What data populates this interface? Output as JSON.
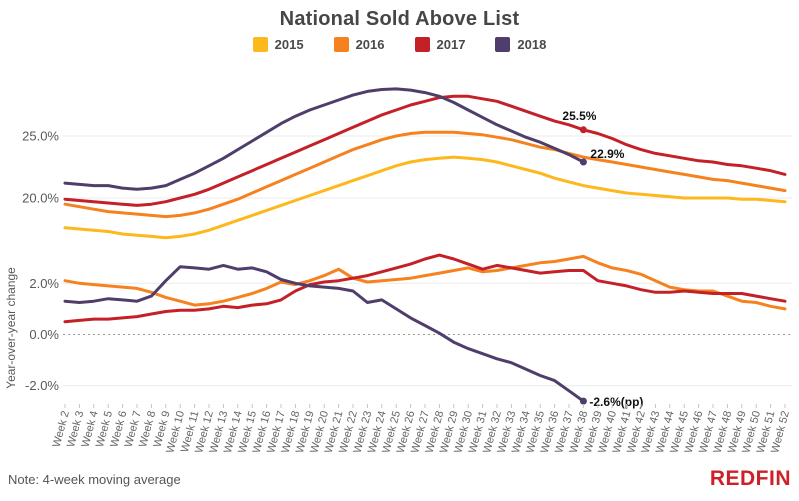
{
  "title": "National Sold Above List",
  "note": "Note: 4-week moving average",
  "brand": "REDFIN",
  "colors": {
    "2015": "#FDB81E",
    "2016": "#F6821F",
    "2017": "#C32127",
    "2018": "#4F3E6B",
    "grid": "#ebebeb",
    "zero_line": "#999999",
    "axis_text": "#595959",
    "x_tick_text": "#666666",
    "title_text": "#464646",
    "note_text": "#555555",
    "annotation_text": "#111111",
    "brand_red": "#CE2029"
  },
  "legend": {
    "items": [
      {
        "label": "2015"
      },
      {
        "label": "2016"
      },
      {
        "label": "2017"
      },
      {
        "label": "2018"
      }
    ]
  },
  "x_axis": {
    "start_week": 2,
    "labels": [
      "Week 2",
      "Week 3",
      "Week 4",
      "Week 5",
      "Week 6",
      "Week 7",
      "Week 8",
      "Week 9",
      "Week 10",
      "Week 11",
      "Week 12",
      "Week 13",
      "Week 14",
      "Week 15",
      "Week 16",
      "Week 17",
      "Week 18",
      "Week 19",
      "Week 20",
      "Week 21",
      "Week 22",
      "Week 23",
      "Week 24",
      "Week 25",
      "Week 26",
      "Week 27",
      "Week 28",
      "Week 29",
      "Week 30",
      "Week 31",
      "Week 32",
      "Week 33",
      "Week 34",
      "Week 35",
      "Week 36",
      "Week 37",
      "Week 38",
      "Week 39",
      "Week 40",
      "Week 41",
      "Week 42",
      "Week 43",
      "Week 44",
      "Week 45",
      "Week 46",
      "Week 47",
      "Week 48",
      "Week 49",
      "Week 50",
      "Week 51",
      "Week 52"
    ]
  },
  "chart_data": [
    {
      "type": "line",
      "title": "National Sold Above List (% sold above list)",
      "xlabel": "",
      "ylabel": "",
      "ylim": [
        16.3,
        29.9
      ],
      "grid": "horizontal",
      "legend_position": "top-center",
      "yticks": [
        {
          "value": 25,
          "label": "25.0%",
          "dotted": false
        },
        {
          "value": 20,
          "label": "20.0%",
          "dotted": false
        }
      ],
      "series": [
        {
          "name": "2015",
          "start_week": 2,
          "values": [
            17.6,
            17.5,
            17.4,
            17.3,
            17.1,
            17.0,
            16.9,
            16.8,
            16.9,
            17.1,
            17.4,
            17.8,
            18.2,
            18.6,
            19.0,
            19.4,
            19.8,
            20.2,
            20.6,
            21.0,
            21.4,
            21.8,
            22.2,
            22.6,
            22.9,
            23.1,
            23.2,
            23.3,
            23.2,
            23.1,
            22.9,
            22.6,
            22.3,
            22.0,
            21.6,
            21.3,
            21.0,
            20.8,
            20.6,
            20.4,
            20.3,
            20.2,
            20.1,
            20.0,
            20.0,
            20.0,
            20.0,
            19.9,
            19.9,
            19.8,
            19.7
          ]
        },
        {
          "name": "2016",
          "start_week": 2,
          "values": [
            19.5,
            19.3,
            19.1,
            18.9,
            18.8,
            18.7,
            18.6,
            18.5,
            18.6,
            18.8,
            19.1,
            19.5,
            19.9,
            20.4,
            20.9,
            21.4,
            21.9,
            22.4,
            22.9,
            23.4,
            23.9,
            24.3,
            24.7,
            25.0,
            25.2,
            25.3,
            25.3,
            25.3,
            25.2,
            25.1,
            24.9,
            24.7,
            24.4,
            24.1,
            23.9,
            23.6,
            23.3,
            23.1,
            22.9,
            22.7,
            22.5,
            22.3,
            22.1,
            21.9,
            21.7,
            21.5,
            21.4,
            21.2,
            21.0,
            20.8,
            20.6
          ]
        },
        {
          "name": "2017",
          "start_week": 2,
          "values": [
            19.9,
            19.8,
            19.7,
            19.6,
            19.5,
            19.4,
            19.5,
            19.7,
            20.0,
            20.3,
            20.7,
            21.2,
            21.7,
            22.2,
            22.7,
            23.2,
            23.7,
            24.2,
            24.7,
            25.2,
            25.7,
            26.2,
            26.7,
            27.1,
            27.5,
            27.8,
            28.1,
            28.2,
            28.2,
            28.0,
            27.8,
            27.4,
            27.0,
            26.6,
            26.2,
            25.9,
            25.5,
            25.2,
            24.8,
            24.3,
            23.9,
            23.6,
            23.4,
            23.2,
            23.0,
            22.9,
            22.7,
            22.6,
            22.4,
            22.2,
            21.9
          ],
          "annotation": {
            "week": 38,
            "value": 25.5,
            "label": "25.5%",
            "dx": -21,
            "dy": -10,
            "anchor": "start"
          }
        },
        {
          "name": "2018",
          "start_week": 2,
          "values": [
            21.2,
            21.1,
            21.0,
            21.0,
            20.8,
            20.7,
            20.8,
            21.0,
            21.5,
            22.0,
            22.6,
            23.2,
            23.9,
            24.6,
            25.3,
            26.0,
            26.6,
            27.1,
            27.5,
            27.9,
            28.3,
            28.6,
            28.75,
            28.8,
            28.7,
            28.5,
            28.2,
            27.7,
            27.1,
            26.5,
            25.9,
            25.4,
            24.9,
            24.5,
            24.0,
            23.5,
            22.9
          ],
          "annotation": {
            "week": 38,
            "value": 22.9,
            "label": "22.9%",
            "dx": 7,
            "dy": -4,
            "anchor": "start"
          }
        }
      ]
    },
    {
      "type": "line",
      "title": "Year-over-year change (percentage points)",
      "xlabel": "",
      "ylabel": "Year-over-year change",
      "ylim": [
        -2.9,
        3.3
      ],
      "grid": "horizontal",
      "yticks": [
        {
          "value": 2,
          "label": "2.0%",
          "dotted": false
        },
        {
          "value": 0,
          "label": "0.0%",
          "dotted": true
        },
        {
          "value": -2,
          "label": "-2.0%",
          "dotted": false
        }
      ],
      "series": [
        {
          "name": "2016",
          "start_week": 2,
          "values": [
            2.1,
            2.0,
            1.95,
            1.9,
            1.85,
            1.8,
            1.65,
            1.45,
            1.3,
            1.15,
            1.2,
            1.3,
            1.45,
            1.6,
            1.8,
            2.05,
            1.95,
            2.1,
            2.3,
            2.55,
            2.2,
            2.05,
            2.1,
            2.15,
            2.2,
            2.3,
            2.4,
            2.5,
            2.6,
            2.45,
            2.5,
            2.6,
            2.7,
            2.8,
            2.85,
            2.95,
            3.05,
            2.8,
            2.6,
            2.5,
            2.35,
            2.1,
            1.85,
            1.75,
            1.7,
            1.7,
            1.5,
            1.3,
            1.25,
            1.1,
            1.0
          ]
        },
        {
          "name": "2017",
          "start_week": 2,
          "values": [
            0.5,
            0.55,
            0.6,
            0.6,
            0.65,
            0.7,
            0.8,
            0.9,
            0.95,
            0.95,
            1.0,
            1.1,
            1.05,
            1.15,
            1.2,
            1.35,
            1.7,
            1.95,
            2.05,
            2.1,
            2.2,
            2.3,
            2.45,
            2.6,
            2.75,
            2.95,
            3.1,
            2.95,
            2.75,
            2.55,
            2.7,
            2.6,
            2.5,
            2.4,
            2.45,
            2.5,
            2.5,
            2.1,
            2.0,
            1.9,
            1.75,
            1.65,
            1.65,
            1.7,
            1.65,
            1.6,
            1.6,
            1.6,
            1.5,
            1.4,
            1.3
          ]
        },
        {
          "name": "2018",
          "start_week": 2,
          "values": [
            1.3,
            1.25,
            1.3,
            1.4,
            1.35,
            1.3,
            1.5,
            2.1,
            2.65,
            2.6,
            2.55,
            2.7,
            2.55,
            2.6,
            2.45,
            2.15,
            2.0,
            1.9,
            1.85,
            1.8,
            1.7,
            1.25,
            1.35,
            1.0,
            0.65,
            0.35,
            0.05,
            -0.3,
            -0.55,
            -0.75,
            -0.95,
            -1.1,
            -1.35,
            -1.6,
            -1.8,
            -2.2,
            -2.6
          ],
          "annotation": {
            "week": 38,
            "value": -2.6,
            "label": "-2.6%(pp)",
            "dx": 6,
            "dy": 5,
            "anchor": "start"
          }
        }
      ]
    }
  ]
}
